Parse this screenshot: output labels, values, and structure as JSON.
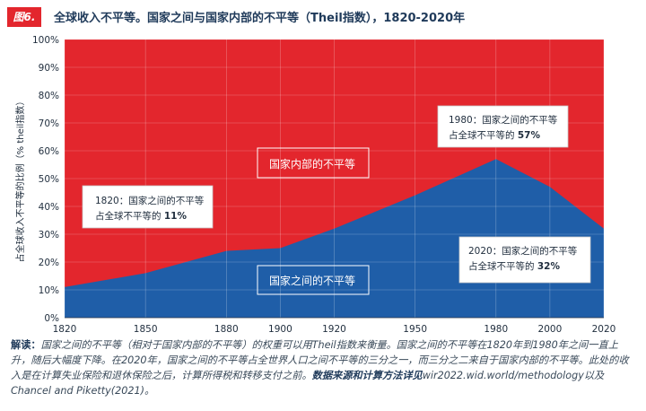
{
  "header": {
    "badge": "图6.",
    "title": "全球收入不平等。国家之间与国家内部的不平等（Theil指数），1820-2020年"
  },
  "caption": {
    "lead": "解读：",
    "body": "国家之间的不平等（相对于国家内部的不平等）的权重可以用Theil指数来衡量。国家之间的不平等在1820年到1980年之间一直上升，随后大幅度下降。在2020年，国家之间的不平等占全世界人口之间不平等的三分之一，而三分之二来自于国家内部的不平等。此处的收入是在计算失业保险和退休保险之后，计算所得税和转移支付之前。",
    "source_bold": "数据来源和计算方法详见",
    "source": "wir2022.wid.world/methodology以及Chancel and Piketty(2021)。"
  },
  "chart_data": {
    "type": "area",
    "x": [
      1820,
      1850,
      1880,
      1900,
      1920,
      1950,
      1980,
      2000,
      2020
    ],
    "series": [
      {
        "name": "国家之间的不平等",
        "values": [
          11,
          16,
          24,
          25,
          32,
          44,
          57,
          47,
          32
        ],
        "color": "#1f5ea8"
      },
      {
        "name": "国家内部的不平等",
        "values": [
          89,
          84,
          76,
          75,
          68,
          56,
          43,
          53,
          68
        ],
        "color": "#e3262d"
      }
    ],
    "ylabel": "占全球收入不平等的比例（% theil指数）",
    "xlim": [
      1820,
      2020
    ],
    "ylim": [
      0,
      100
    ],
    "y_ticks": [
      "0%",
      "10%",
      "20%",
      "30%",
      "40%",
      "50%",
      "60%",
      "70%",
      "80%",
      "90%",
      "100%"
    ],
    "x_ticks": [
      "1820",
      "1850",
      "1880",
      "1900",
      "1920",
      "1950",
      "1980",
      "2000",
      "2020"
    ],
    "area_labels": {
      "within": "国家内部的不平等",
      "between": "国家之间的不平等"
    },
    "annotations": [
      {
        "line1": "1820：国家之间的不平等",
        "line2_prefix": "占全球不平等的 ",
        "value": "11%"
      },
      {
        "line1": "1980：国家之间的不平等",
        "line2_prefix": "占全球不平等的 ",
        "value": "57%"
      },
      {
        "line1": "2020：国家之间的不平等",
        "line2_prefix": "占全球不平等的 ",
        "value": "32%"
      }
    ]
  }
}
